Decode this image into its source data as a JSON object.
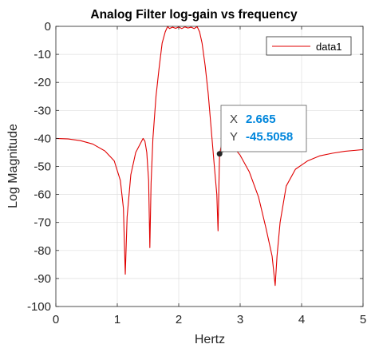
{
  "chart_data": {
    "type": "line",
    "title": "Analog Filter log-gain vs frequency",
    "xlabel": "Hertz",
    "ylabel": "Log Magnitude",
    "xlim": [
      0,
      5
    ],
    "ylim": [
      -100,
      0
    ],
    "xticks": [
      0,
      1,
      2,
      3,
      4,
      5
    ],
    "yticks": [
      0,
      -10,
      -20,
      -30,
      -40,
      -50,
      -60,
      -70,
      -80,
      -90,
      -100
    ],
    "grid": true,
    "legend": {
      "position": "top-right"
    },
    "series": [
      {
        "name": "data1",
        "color": "#e00000",
        "x": [
          0.0,
          0.2,
          0.4,
          0.6,
          0.8,
          0.95,
          1.05,
          1.1,
          1.13,
          1.16,
          1.22,
          1.3,
          1.42,
          1.45,
          1.48,
          1.51,
          1.53,
          1.55,
          1.58,
          1.63,
          1.68,
          1.73,
          1.78,
          1.82,
          1.85,
          1.9,
          1.95,
          2.0,
          2.05,
          2.1,
          2.15,
          2.2,
          2.25,
          2.3,
          2.34,
          2.38,
          2.43,
          2.48,
          2.53,
          2.58,
          2.62,
          2.64,
          2.66,
          2.665,
          2.7,
          2.75,
          2.85,
          3.0,
          3.15,
          3.3,
          3.42,
          3.52,
          3.57,
          3.6,
          3.65,
          3.75,
          3.9,
          4.1,
          4.3,
          4.5,
          4.7,
          4.85,
          5.0
        ],
        "y": [
          -40,
          -40.2,
          -40.8,
          -42,
          -44.5,
          -48,
          -55,
          -65,
          -88.5,
          -68,
          -53,
          -45,
          -40,
          -41,
          -45,
          -55,
          -79,
          -56,
          -40,
          -25,
          -15,
          -6,
          -2,
          0,
          -0.8,
          -0.3,
          -0.7,
          -0.2,
          -0.8,
          -0.2,
          -0.6,
          -0.3,
          -0.8,
          -0.1,
          -2,
          -6,
          -14,
          -24,
          -37,
          -50,
          -60,
          -73,
          -50,
          -45.5058,
          -42,
          -40.5,
          -42,
          -46,
          -52,
          -61,
          -72,
          -82,
          -92.5,
          -82,
          -70,
          -57,
          -51,
          -48,
          -46.2,
          -45.3,
          -44.6,
          -44.3,
          -44
        ]
      }
    ],
    "datatip": {
      "x_label": "X",
      "y_label": "Y",
      "x_value": "2.665",
      "y_value": "-45.5058",
      "x": 2.665,
      "y": -45.5058
    }
  }
}
